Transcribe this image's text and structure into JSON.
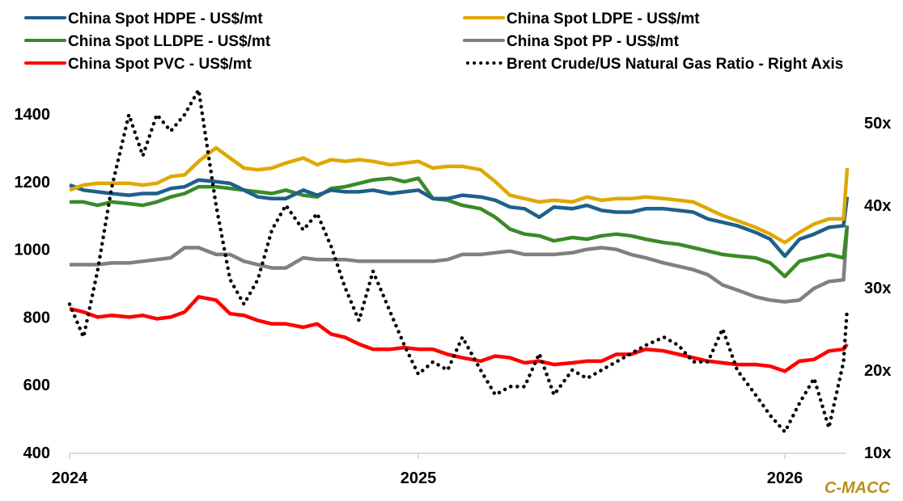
{
  "chart_data": {
    "type": "line",
    "title": "",
    "xlabel": "",
    "ylabel": "",
    "y2label": "",
    "x_ticks": [
      "2024",
      "2025",
      "2026"
    ],
    "x_range": [
      2024.0,
      2026.17
    ],
    "ylim": [
      400,
      1500
    ],
    "y_ticks": [
      400,
      600,
      800,
      1000,
      1200,
      1400
    ],
    "y2lim": [
      10,
      55
    ],
    "y2_ticks": [
      "10x",
      "20x",
      "30x",
      "40x",
      "50x"
    ],
    "y2_tick_values": [
      10,
      20,
      30,
      40,
      50
    ],
    "grid": false,
    "legend_position": "top",
    "brand_label": "C-MACC",
    "brand_color": "#B8901A",
    "x": [
      2024.0,
      2024.04,
      2024.08,
      2024.12,
      2024.17,
      2024.21,
      2024.25,
      2024.29,
      2024.33,
      2024.37,
      2024.42,
      2024.46,
      2024.5,
      2024.54,
      2024.58,
      2024.62,
      2024.67,
      2024.71,
      2024.75,
      2024.79,
      2024.83,
      2024.87,
      2024.92,
      2024.96,
      2025.0,
      2025.04,
      2025.08,
      2025.12,
      2025.17,
      2025.21,
      2025.25,
      2025.29,
      2025.33,
      2025.37,
      2025.42,
      2025.46,
      2025.5,
      2025.54,
      2025.58,
      2025.62,
      2025.67,
      2025.71,
      2025.75,
      2025.79,
      2025.83,
      2025.87,
      2025.92,
      2025.96,
      2026.0,
      2026.04,
      2026.08,
      2026.12,
      2026.16,
      2026.17
    ],
    "series": [
      {
        "name": "China Spot HDPE - US$/mt",
        "color": "#1F5F8B",
        "axis": "left",
        "style": "solid",
        "values": [
          1190,
          1175,
          1170,
          1165,
          1160,
          1165,
          1165,
          1180,
          1185,
          1205,
          1200,
          1195,
          1175,
          1155,
          1150,
          1150,
          1175,
          1160,
          1175,
          1170,
          1170,
          1175,
          1165,
          1170,
          1175,
          1150,
          1150,
          1160,
          1155,
          1145,
          1125,
          1120,
          1095,
          1125,
          1120,
          1130,
          1115,
          1110,
          1110,
          1120,
          1120,
          1115,
          1110,
          1090,
          1080,
          1070,
          1050,
          1030,
          980,
          1030,
          1045,
          1065,
          1070,
          1155
        ]
      },
      {
        "name": "China Spot LDPE - US$/mt",
        "color": "#E0A800",
        "axis": "left",
        "style": "solid",
        "values": [
          1175,
          1190,
          1195,
          1195,
          1195,
          1190,
          1195,
          1215,
          1220,
          1260,
          1300,
          1270,
          1240,
          1235,
          1240,
          1255,
          1270,
          1250,
          1265,
          1260,
          1265,
          1260,
          1250,
          1255,
          1260,
          1240,
          1245,
          1245,
          1235,
          1200,
          1160,
          1150,
          1140,
          1145,
          1140,
          1155,
          1145,
          1150,
          1150,
          1155,
          1150,
          1145,
          1140,
          1120,
          1100,
          1085,
          1065,
          1045,
          1020,
          1050,
          1075,
          1090,
          1090,
          1240
        ]
      },
      {
        "name": "China Spot LLDPE - US$/mt",
        "color": "#3A8A28",
        "axis": "left",
        "style": "solid",
        "values": [
          1140,
          1140,
          1130,
          1140,
          1135,
          1130,
          1140,
          1155,
          1165,
          1185,
          1185,
          1180,
          1175,
          1170,
          1165,
          1175,
          1160,
          1155,
          1180,
          1185,
          1195,
          1205,
          1210,
          1200,
          1210,
          1150,
          1145,
          1130,
          1120,
          1095,
          1060,
          1045,
          1040,
          1025,
          1035,
          1030,
          1040,
          1045,
          1040,
          1030,
          1020,
          1015,
          1005,
          995,
          985,
          980,
          975,
          960,
          920,
          965,
          975,
          985,
          975,
          1070
        ]
      },
      {
        "name": "China Spot PP - US$/mt",
        "color": "#808080",
        "axis": "left",
        "style": "solid",
        "values": [
          955,
          955,
          955,
          960,
          960,
          965,
          970,
          975,
          1005,
          1005,
          985,
          985,
          965,
          955,
          945,
          945,
          975,
          970,
          970,
          970,
          965,
          965,
          965,
          965,
          965,
          965,
          970,
          985,
          985,
          990,
          995,
          985,
          985,
          985,
          990,
          1000,
          1005,
          1000,
          985,
          975,
          960,
          950,
          940,
          925,
          895,
          880,
          860,
          850,
          845,
          850,
          885,
          905,
          910,
          1070
        ]
      },
      {
        "name": "China Spot PVC - US$/mt",
        "color": "#FF0000",
        "axis": "left",
        "style": "solid",
        "values": [
          825,
          815,
          800,
          805,
          800,
          805,
          795,
          800,
          815,
          860,
          850,
          810,
          805,
          790,
          780,
          780,
          770,
          780,
          750,
          740,
          720,
          705,
          705,
          710,
          705,
          705,
          690,
          680,
          670,
          685,
          680,
          665,
          670,
          660,
          665,
          670,
          670,
          690,
          690,
          705,
          700,
          690,
          680,
          670,
          665,
          660,
          660,
          655,
          640,
          670,
          675,
          700,
          705,
          720
        ]
      },
      {
        "name": "Brent Crude/US Natural Gas Ratio - Right Axis",
        "color": "#000000",
        "axis": "right",
        "style": "dotted",
        "values": [
          28,
          24,
          32,
          42,
          51,
          46,
          51,
          49,
          51,
          54,
          40,
          31,
          28,
          31,
          37,
          40,
          37,
          39,
          35,
          30,
          26,
          32,
          27,
          23,
          19.5,
          21,
          20,
          24,
          20,
          17,
          18,
          18,
          22,
          17,
          20,
          19,
          20,
          21,
          22,
          23,
          24,
          23,
          21,
          21,
          25,
          20,
          17,
          14.5,
          12.5,
          16,
          19,
          13,
          21,
          27.5
        ]
      }
    ]
  }
}
